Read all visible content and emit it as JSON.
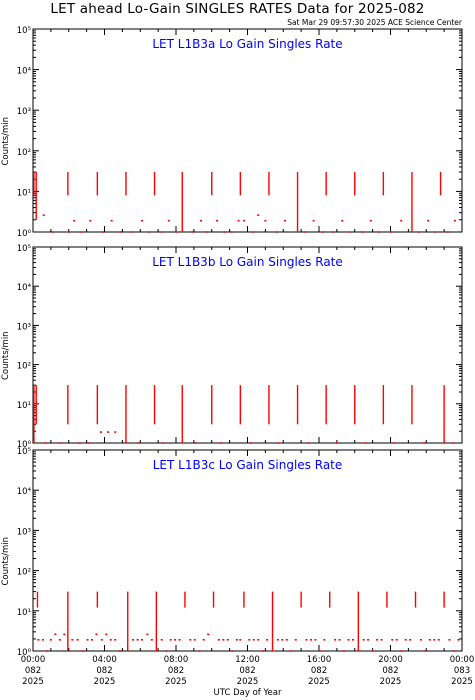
{
  "header": {
    "title": "LET ahead Lo-Gain SINGLES RATES Data for 2025-082",
    "timestamp": "Sat Mar 29 09:57:30 2025 ACE Science Center"
  },
  "xaxis_label": "UTC Day of Year",
  "colors": {
    "data": "#ff0000",
    "panel_title": "#0000ff",
    "axes": "#000000"
  },
  "chart_data": [
    {
      "type": "scatter",
      "title": "LET L1B3a Lo Gain Singles Rate",
      "ylabel": "Counts/min",
      "yscale": "log",
      "ylim": [
        1,
        100000
      ],
      "ytick_labels": [
        "10⁰",
        "10¹",
        "10²",
        "10³",
        "10⁴",
        "10⁵"
      ],
      "xlim": [
        0,
        24
      ],
      "spikes": [
        {
          "x": 0.05,
          "ylow": 8,
          "yhigh": 30
        },
        {
          "x": 0.18,
          "ylow": 2,
          "yhigh": 30
        },
        {
          "x": 1.95,
          "ylow": 8,
          "yhigh": 30
        },
        {
          "x": 3.6,
          "ylow": 8,
          "yhigh": 30
        },
        {
          "x": 5.2,
          "ylow": 8,
          "yhigh": 30
        },
        {
          "x": 6.8,
          "ylow": 8,
          "yhigh": 30
        },
        {
          "x": 8.35,
          "ylow": 1,
          "yhigh": 30
        },
        {
          "x": 10.0,
          "ylow": 8,
          "yhigh": 30
        },
        {
          "x": 11.6,
          "ylow": 8,
          "yhigh": 30
        },
        {
          "x": 13.2,
          "ylow": 8,
          "yhigh": 30
        },
        {
          "x": 14.8,
          "ylow": 1,
          "yhigh": 30
        },
        {
          "x": 16.4,
          "ylow": 8,
          "yhigh": 30
        },
        {
          "x": 18.0,
          "ylow": 8,
          "yhigh": 30
        },
        {
          "x": 19.6,
          "ylow": 8,
          "yhigh": 30
        },
        {
          "x": 21.2,
          "ylow": 1,
          "yhigh": 30
        },
        {
          "x": 22.8,
          "ylow": 8,
          "yhigh": 30
        }
      ],
      "low_points": [
        {
          "x": 0.6,
          "y": 2.6
        },
        {
          "x": 1.1,
          "y": 1.0
        },
        {
          "x": 2.0,
          "y": 1.0
        },
        {
          "x": 2.3,
          "y": 1.9
        },
        {
          "x": 2.7,
          "y": 1.0
        },
        {
          "x": 3.2,
          "y": 1.9
        },
        {
          "x": 3.9,
          "y": 1.0
        },
        {
          "x": 4.4,
          "y": 1.9
        },
        {
          "x": 4.9,
          "y": 1.0
        },
        {
          "x": 5.5,
          "y": 1.0
        },
        {
          "x": 6.1,
          "y": 1.9
        },
        {
          "x": 6.5,
          "y": 1.0
        },
        {
          "x": 7.2,
          "y": 1.0
        },
        {
          "x": 7.6,
          "y": 1.9
        },
        {
          "x": 8.0,
          "y": 1.0
        },
        {
          "x": 8.9,
          "y": 1.0
        },
        {
          "x": 9.4,
          "y": 1.9
        },
        {
          "x": 9.7,
          "y": 1.0
        },
        {
          "x": 10.3,
          "y": 1.9
        },
        {
          "x": 10.7,
          "y": 1.0
        },
        {
          "x": 11.1,
          "y": 1.0
        },
        {
          "x": 11.5,
          "y": 1.9
        },
        {
          "x": 11.8,
          "y": 1.9
        },
        {
          "x": 12.3,
          "y": 1.0
        },
        {
          "x": 12.6,
          "y": 2.6
        },
        {
          "x": 13.0,
          "y": 1.9
        },
        {
          "x": 13.6,
          "y": 1.0
        },
        {
          "x": 14.1,
          "y": 1.9
        },
        {
          "x": 15.2,
          "y": 1.0
        },
        {
          "x": 15.7,
          "y": 1.9
        },
        {
          "x": 16.2,
          "y": 1.0
        },
        {
          "x": 16.8,
          "y": 1.0
        },
        {
          "x": 17.3,
          "y": 1.9
        },
        {
          "x": 17.7,
          "y": 1.0
        },
        {
          "x": 18.4,
          "y": 1.0
        },
        {
          "x": 18.9,
          "y": 1.9
        },
        {
          "x": 19.3,
          "y": 1.0
        },
        {
          "x": 20.0,
          "y": 1.0
        },
        {
          "x": 20.6,
          "y": 1.9
        },
        {
          "x": 21.6,
          "y": 1.0
        },
        {
          "x": 22.1,
          "y": 1.9
        },
        {
          "x": 22.5,
          "y": 1.0
        },
        {
          "x": 23.2,
          "y": 1.0
        },
        {
          "x": 23.6,
          "y": 1.9
        }
      ]
    },
    {
      "type": "scatter",
      "title": "LET L1B3b Lo Gain Singles Rate",
      "ylabel": "Counts/min",
      "yscale": "log",
      "ylim": [
        1,
        100000
      ],
      "ytick_labels": [
        "10⁰",
        "10¹",
        "10²",
        "10³",
        "10⁴",
        "10⁵"
      ],
      "xlim": [
        0,
        24
      ],
      "spikes": [
        {
          "x": 0.05,
          "ylow": 1,
          "yhigh": 30
        },
        {
          "x": 0.18,
          "ylow": 3,
          "yhigh": 30
        },
        {
          "x": 1.95,
          "ylow": 3,
          "yhigh": 30
        },
        {
          "x": 3.6,
          "ylow": 3,
          "yhigh": 30
        },
        {
          "x": 5.2,
          "ylow": 1,
          "yhigh": 30
        },
        {
          "x": 6.8,
          "ylow": 3,
          "yhigh": 30
        },
        {
          "x": 8.35,
          "ylow": 1,
          "yhigh": 30
        },
        {
          "x": 10.0,
          "ylow": 3,
          "yhigh": 30
        },
        {
          "x": 11.6,
          "ylow": 3,
          "yhigh": 30
        },
        {
          "x": 13.2,
          "ylow": 3,
          "yhigh": 30
        },
        {
          "x": 14.8,
          "ylow": 3,
          "yhigh": 30
        },
        {
          "x": 16.4,
          "ylow": 3,
          "yhigh": 30
        },
        {
          "x": 18.0,
          "ylow": 3,
          "yhigh": 30
        },
        {
          "x": 19.6,
          "ylow": 3,
          "yhigh": 30
        },
        {
          "x": 21.2,
          "ylow": 3,
          "yhigh": 30
        },
        {
          "x": 23.0,
          "ylow": 1,
          "yhigh": 30
        }
      ],
      "low_points": [
        {
          "x": 0.7,
          "y": 1.0
        },
        {
          "x": 1.5,
          "y": 1.0
        },
        {
          "x": 2.6,
          "y": 1.0
        },
        {
          "x": 3.1,
          "y": 1.0
        },
        {
          "x": 3.8,
          "y": 1.9
        },
        {
          "x": 4.2,
          "y": 1.9
        },
        {
          "x": 4.6,
          "y": 1.9
        },
        {
          "x": 5.9,
          "y": 1.0
        },
        {
          "x": 7.3,
          "y": 1.0
        },
        {
          "x": 9.1,
          "y": 1.0
        },
        {
          "x": 10.5,
          "y": 1.0
        },
        {
          "x": 12.2,
          "y": 1.0
        },
        {
          "x": 13.7,
          "y": 1.0
        },
        {
          "x": 15.4,
          "y": 1.0
        },
        {
          "x": 17.0,
          "y": 1.0
        },
        {
          "x": 18.6,
          "y": 1.0
        },
        {
          "x": 20.2,
          "y": 1.0
        },
        {
          "x": 21.9,
          "y": 1.0
        },
        {
          "x": 23.5,
          "y": 1.0
        }
      ]
    },
    {
      "type": "scatter",
      "title": "LET L1B3c Lo Gain Singles Rate",
      "ylabel": "Counts/min",
      "yscale": "log",
      "ylim": [
        1,
        100000
      ],
      "ytick_labels": [
        "10⁰",
        "10¹",
        "10²",
        "10³",
        "10⁴",
        "10⁵"
      ],
      "xlim": [
        0,
        24
      ],
      "x_tick_labels": [
        {
          "time": "00:00",
          "doy": "082",
          "year": "2025"
        },
        {
          "time": "04:00",
          "doy": "082",
          "year": "2025"
        },
        {
          "time": "08:00",
          "doy": "082",
          "year": "2025"
        },
        {
          "time": "12:00",
          "doy": "082",
          "year": "2025"
        },
        {
          "time": "16:00",
          "doy": "082",
          "year": "2025"
        },
        {
          "time": "20:00",
          "doy": "082",
          "year": "2025"
        },
        {
          "time": "00:00",
          "doy": "083",
          "year": "2025"
        }
      ],
      "spikes": [
        {
          "x": 0.25,
          "ylow": 12,
          "yhigh": 30
        },
        {
          "x": 1.95,
          "ylow": 1,
          "yhigh": 30
        },
        {
          "x": 3.6,
          "ylow": 12,
          "yhigh": 30
        },
        {
          "x": 5.3,
          "ylow": 1,
          "yhigh": 30
        },
        {
          "x": 6.9,
          "ylow": 1,
          "yhigh": 30
        },
        {
          "x": 8.5,
          "ylow": 12,
          "yhigh": 30
        },
        {
          "x": 10.1,
          "ylow": 12,
          "yhigh": 30
        },
        {
          "x": 11.8,
          "ylow": 12,
          "yhigh": 30
        },
        {
          "x": 13.4,
          "ylow": 1,
          "yhigh": 30
        },
        {
          "x": 15.0,
          "ylow": 12,
          "yhigh": 30
        },
        {
          "x": 16.6,
          "ylow": 12,
          "yhigh": 30
        },
        {
          "x": 18.2,
          "ylow": 1,
          "yhigh": 30
        },
        {
          "x": 19.8,
          "ylow": 12,
          "yhigh": 30
        },
        {
          "x": 21.4,
          "ylow": 12,
          "yhigh": 30
        },
        {
          "x": 23.0,
          "ylow": 12,
          "yhigh": 30
        }
      ],
      "low_points": [
        {
          "x": 0.3,
          "y": 1.9
        },
        {
          "x": 0.55,
          "y": 1.9
        },
        {
          "x": 0.8,
          "y": 1.0
        },
        {
          "x": 1.0,
          "y": 1.9
        },
        {
          "x": 1.25,
          "y": 2.6
        },
        {
          "x": 1.5,
          "y": 1.9
        },
        {
          "x": 1.75,
          "y": 2.6
        },
        {
          "x": 2.2,
          "y": 1.9
        },
        {
          "x": 2.5,
          "y": 1.9
        },
        {
          "x": 2.75,
          "y": 1.0
        },
        {
          "x": 3.05,
          "y": 1.9
        },
        {
          "x": 3.3,
          "y": 1.9
        },
        {
          "x": 3.55,
          "y": 2.6
        },
        {
          "x": 3.85,
          "y": 1.9
        },
        {
          "x": 4.1,
          "y": 2.6
        },
        {
          "x": 4.35,
          "y": 1.9
        },
        {
          "x": 4.6,
          "y": 1.9
        },
        {
          "x": 4.85,
          "y": 1.0
        },
        {
          "x": 5.6,
          "y": 1.9
        },
        {
          "x": 5.85,
          "y": 1.9
        },
        {
          "x": 6.1,
          "y": 1.9
        },
        {
          "x": 6.4,
          "y": 2.6
        },
        {
          "x": 6.65,
          "y": 1.9
        },
        {
          "x": 7.2,
          "y": 1.9
        },
        {
          "x": 7.45,
          "y": 1.0
        },
        {
          "x": 7.7,
          "y": 1.9
        },
        {
          "x": 7.95,
          "y": 1.9
        },
        {
          "x": 8.2,
          "y": 1.9
        },
        {
          "x": 8.8,
          "y": 1.9
        },
        {
          "x": 9.05,
          "y": 1.9
        },
        {
          "x": 9.3,
          "y": 1.0
        },
        {
          "x": 9.55,
          "y": 1.9
        },
        {
          "x": 9.8,
          "y": 2.6
        },
        {
          "x": 10.4,
          "y": 1.9
        },
        {
          "x": 10.65,
          "y": 1.9
        },
        {
          "x": 10.9,
          "y": 1.9
        },
        {
          "x": 11.15,
          "y": 1.0
        },
        {
          "x": 11.4,
          "y": 1.9
        },
        {
          "x": 11.6,
          "y": 1.9
        },
        {
          "x": 12.1,
          "y": 1.9
        },
        {
          "x": 12.35,
          "y": 1.9
        },
        {
          "x": 12.6,
          "y": 1.9
        },
        {
          "x": 12.85,
          "y": 1.0
        },
        {
          "x": 13.1,
          "y": 1.9
        },
        {
          "x": 13.7,
          "y": 1.9
        },
        {
          "x": 13.95,
          "y": 1.9
        },
        {
          "x": 14.2,
          "y": 1.9
        },
        {
          "x": 14.45,
          "y": 1.0
        },
        {
          "x": 14.7,
          "y": 1.9
        },
        {
          "x": 15.3,
          "y": 1.9
        },
        {
          "x": 15.55,
          "y": 1.9
        },
        {
          "x": 15.8,
          "y": 1.9
        },
        {
          "x": 16.05,
          "y": 1.0
        },
        {
          "x": 16.3,
          "y": 1.9
        },
        {
          "x": 16.9,
          "y": 1.9
        },
        {
          "x": 17.15,
          "y": 1.9
        },
        {
          "x": 17.4,
          "y": 1.0
        },
        {
          "x": 17.65,
          "y": 1.9
        },
        {
          "x": 17.9,
          "y": 1.9
        },
        {
          "x": 18.5,
          "y": 1.9
        },
        {
          "x": 18.75,
          "y": 1.9
        },
        {
          "x": 19.0,
          "y": 1.0
        },
        {
          "x": 19.25,
          "y": 1.9
        },
        {
          "x": 19.5,
          "y": 1.9
        },
        {
          "x": 20.1,
          "y": 1.9
        },
        {
          "x": 20.35,
          "y": 1.9
        },
        {
          "x": 20.6,
          "y": 1.0
        },
        {
          "x": 20.85,
          "y": 1.9
        },
        {
          "x": 21.1,
          "y": 1.9
        },
        {
          "x": 21.7,
          "y": 1.9
        },
        {
          "x": 21.95,
          "y": 1.0
        },
        {
          "x": 22.2,
          "y": 1.9
        },
        {
          "x": 22.45,
          "y": 1.9
        },
        {
          "x": 22.7,
          "y": 1.9
        },
        {
          "x": 23.3,
          "y": 1.9
        },
        {
          "x": 23.55,
          "y": 1.0
        },
        {
          "x": 23.8,
          "y": 1.9
        }
      ]
    }
  ]
}
